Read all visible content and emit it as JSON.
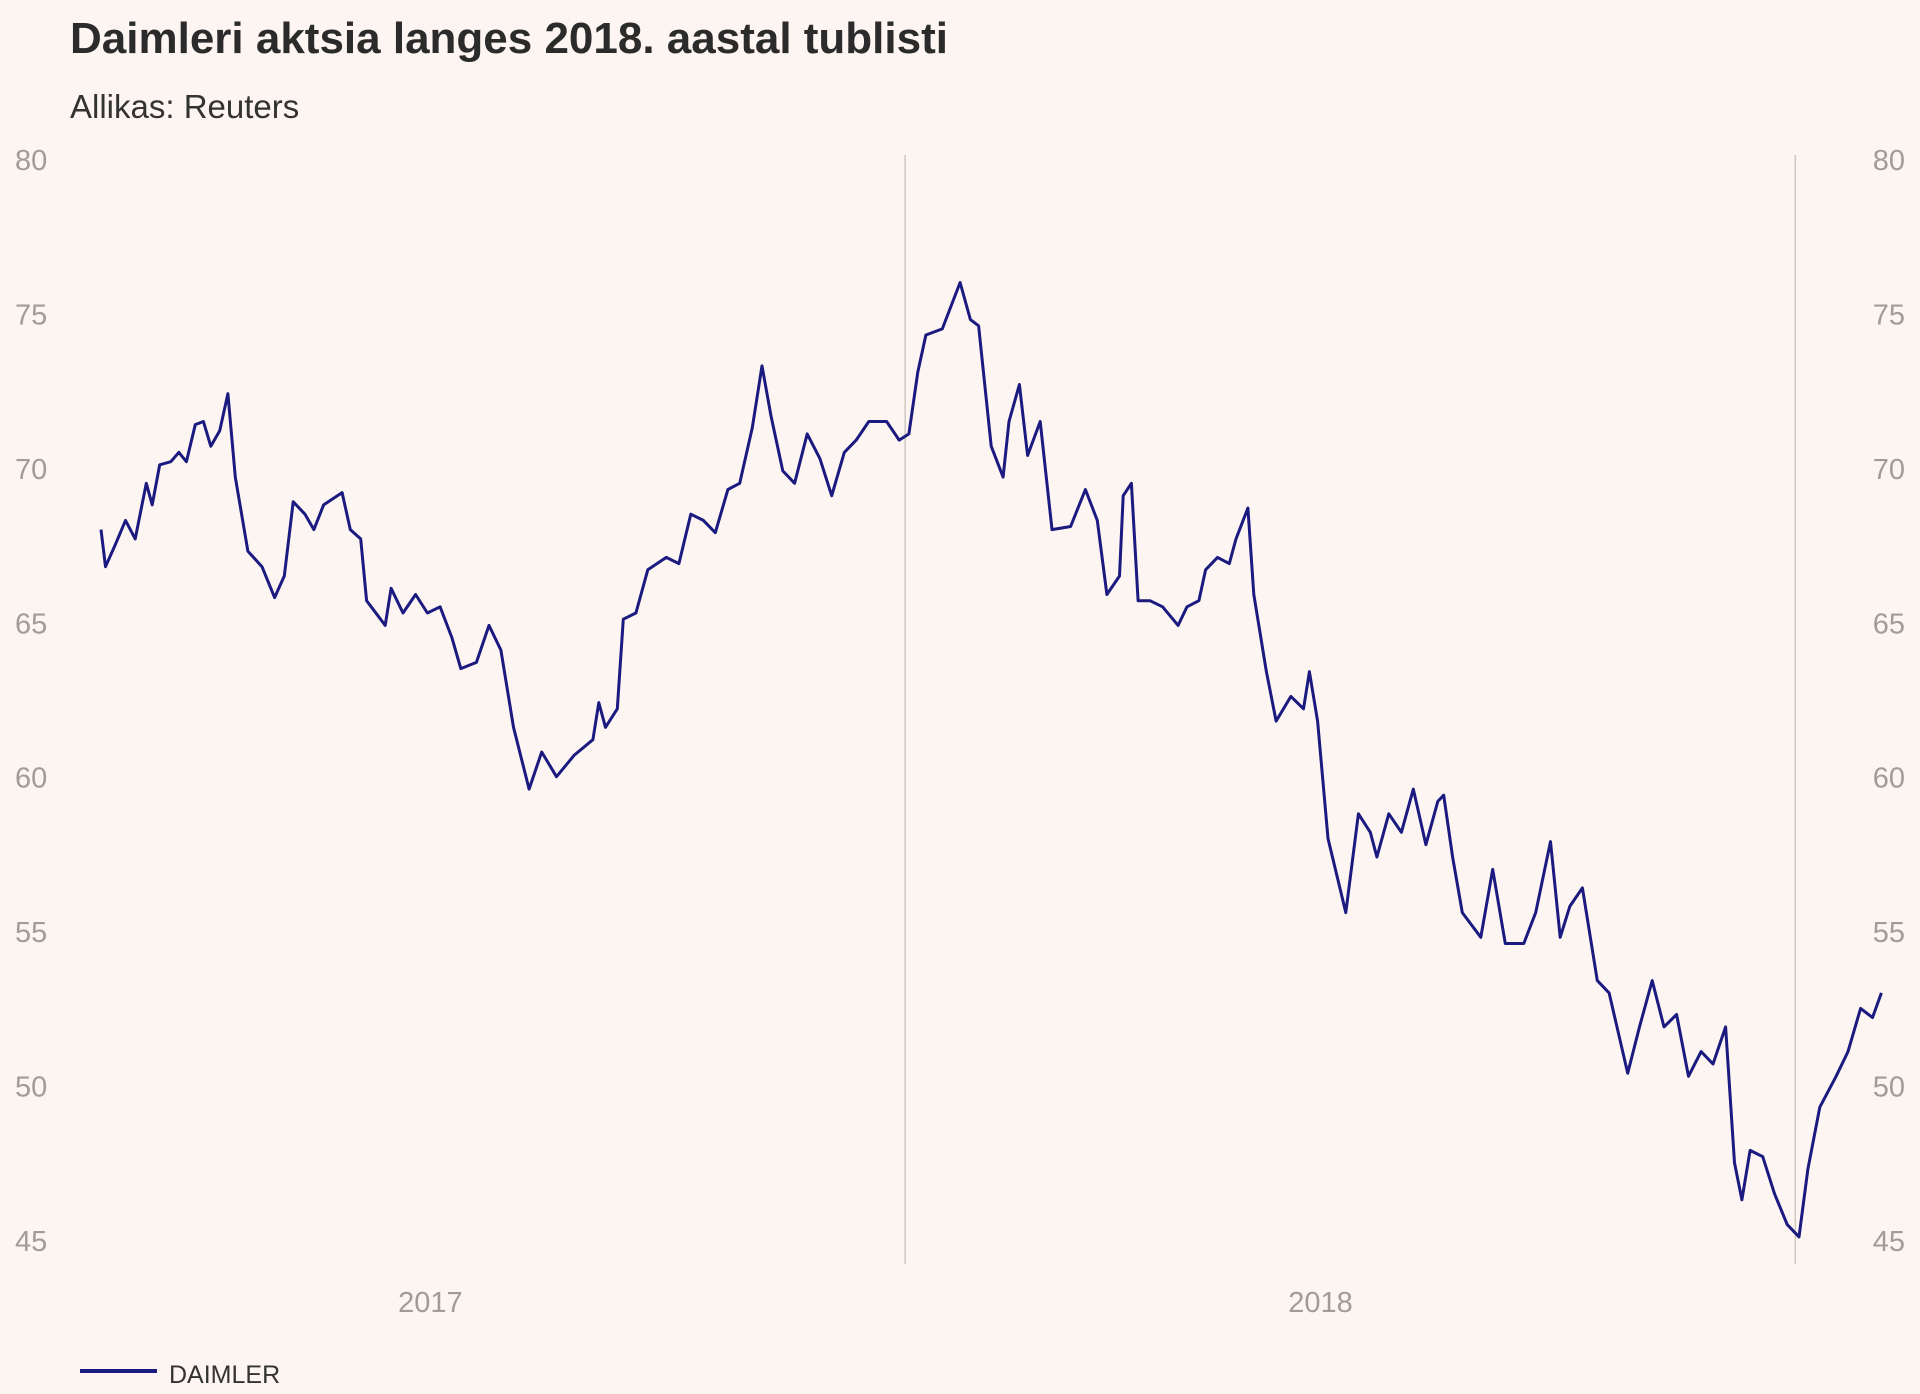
{
  "chart_data": {
    "type": "line",
    "title": "Daimleri aktsia langes 2018. aastal tublisti",
    "subtitle": "Allikas: Reuters",
    "xlabel": "",
    "ylabel": "",
    "x_unit": "months since start of 2017",
    "xlim": [
      0,
      25.5
    ],
    "ylim": [
      45,
      80
    ],
    "yticks": [
      80,
      75,
      70,
      65,
      60,
      55,
      50,
      45
    ],
    "ytick_labels": [
      "80",
      "75",
      "70",
      "65",
      "60",
      "55",
      "50",
      "45"
    ],
    "xtick_labels": [
      {
        "label": "2017",
        "at": 5.6
      },
      {
        "label": "2018",
        "at": 17.6
      }
    ],
    "year_dividers": [
      12,
      24
    ],
    "grid": false,
    "legend": {
      "position": "bottom-left",
      "entries": [
        "DAIMLER"
      ]
    },
    "series": [
      {
        "name": "DAIMLER",
        "color": "#1a1a80",
        "x": [
          1.16,
          1.22,
          1.35,
          1.49,
          1.62,
          1.77,
          1.85,
          1.95,
          2.1,
          2.21,
          2.31,
          2.43,
          2.54,
          2.64,
          2.76,
          2.87,
          2.97,
          3.14,
          3.33,
          3.5,
          3.63,
          3.75,
          3.91,
          4.03,
          4.16,
          4.41,
          4.52,
          4.66,
          4.74,
          4.99,
          5.07,
          5.23,
          5.4,
          5.56,
          5.73,
          5.89,
          6.01,
          6.22,
          6.39,
          6.55,
          6.72,
          6.93,
          7.1,
          7.3,
          7.54,
          7.79,
          7.87,
          7.96,
          8.12,
          8.2,
          8.37,
          8.53,
          8.78,
          8.95,
          9.11,
          9.28,
          9.44,
          9.61,
          9.77,
          9.94,
          10.07,
          10.19,
          10.35,
          10.51,
          10.68,
          10.85,
          11.01,
          11.18,
          11.34,
          11.51,
          11.75,
          11.92,
          12.05,
          12.17,
          12.28,
          12.5,
          12.74,
          12.88,
          12.99,
          13.16,
          13.32,
          13.4,
          13.54,
          13.65,
          13.82,
          13.98,
          14.23,
          14.43,
          14.59,
          14.72,
          14.89,
          14.94,
          15.05,
          15.14,
          15.3,
          15.47,
          15.68,
          15.8,
          15.96,
          16.05,
          16.21,
          16.37,
          16.46,
          16.62,
          16.7,
          16.87,
          17.0,
          17.2,
          17.37,
          17.45,
          17.56,
          17.7,
          17.94,
          18.11,
          18.27,
          18.36,
          18.52,
          18.69,
          18.85,
          19.02,
          19.18,
          19.26,
          19.38,
          19.51,
          19.76,
          19.92,
          20.09,
          20.34,
          20.5,
          20.7,
          20.83,
          20.96,
          21.13,
          21.33,
          21.49,
          21.74,
          21.9,
          22.07,
          22.23,
          22.4,
          22.56,
          22.73,
          22.89,
          23.06,
          23.18,
          23.28,
          23.39,
          23.56,
          23.72,
          23.89,
          24.05,
          24.17,
          24.33,
          24.55,
          24.71,
          24.88,
          25.04,
          25.16
        ],
        "values": [
          68.0,
          66.8,
          67.5,
          68.3,
          67.7,
          69.5,
          68.8,
          70.1,
          70.2,
          70.5,
          70.2,
          71.4,
          71.5,
          70.7,
          71.2,
          72.4,
          69.7,
          67.3,
          66.8,
          65.8,
          66.5,
          68.9,
          68.5,
          68.0,
          68.8,
          69.2,
          68.0,
          67.7,
          65.7,
          64.9,
          66.1,
          65.3,
          65.9,
          65.3,
          65.5,
          64.5,
          63.5,
          63.7,
          64.9,
          64.1,
          61.6,
          59.6,
          60.8,
          60.0,
          60.7,
          61.2,
          62.4,
          61.6,
          62.2,
          65.1,
          65.3,
          66.7,
          67.1,
          66.9,
          68.5,
          68.3,
          67.9,
          69.3,
          69.5,
          71.3,
          73.3,
          71.7,
          69.9,
          69.5,
          71.1,
          70.3,
          69.1,
          70.5,
          70.9,
          71.5,
          71.5,
          70.9,
          71.1,
          73.1,
          74.3,
          74.5,
          76.0,
          74.8,
          74.6,
          70.7,
          69.7,
          71.5,
          72.7,
          70.4,
          71.5,
          68.0,
          68.1,
          69.3,
          68.3,
          65.9,
          66.5,
          69.1,
          69.5,
          65.7,
          65.7,
          65.5,
          64.9,
          65.5,
          65.7,
          66.7,
          67.1,
          66.9,
          67.7,
          68.7,
          65.9,
          63.4,
          61.8,
          62.6,
          62.2,
          63.4,
          61.8,
          58.0,
          55.6,
          58.8,
          58.2,
          57.4,
          58.8,
          58.2,
          59.6,
          57.8,
          59.2,
          59.4,
          57.4,
          55.6,
          54.8,
          57.0,
          54.6,
          54.6,
          55.6,
          57.9,
          54.8,
          55.8,
          56.4,
          53.4,
          53.0,
          50.4,
          51.9,
          53.4,
          51.9,
          52.3,
          50.3,
          51.1,
          50.7,
          51.9,
          47.5,
          46.3,
          47.9,
          47.7,
          46.5,
          45.5,
          45.1,
          47.3,
          49.3,
          50.3,
          51.1,
          52.5,
          52.2,
          53.0
        ]
      }
    ]
  }
}
